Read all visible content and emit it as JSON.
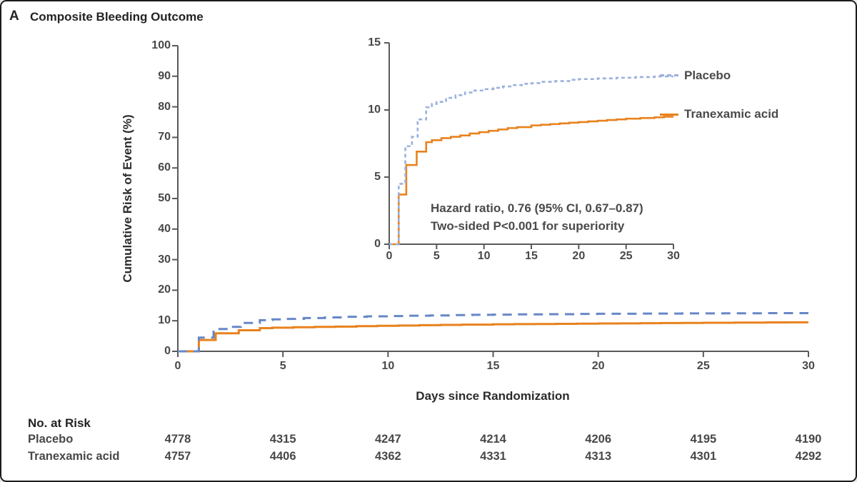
{
  "panel": {
    "label": "A",
    "title": "Composite Bleeding Outcome"
  },
  "chart_data": {
    "type": "line",
    "subtype": "kaplan-meier-step-cumulative-incidence",
    "title": "Composite Bleeding Outcome",
    "xlabel": "Days since Randomization",
    "ylabel": "Cumulative Risk of Event (%)",
    "grid": false,
    "main_axes": {
      "xlim": [
        0,
        30
      ],
      "ylim": [
        0,
        100
      ],
      "xticks": [
        0,
        5,
        10,
        15,
        20,
        25,
        30
      ],
      "yticks": [
        0,
        10,
        20,
        30,
        40,
        50,
        60,
        70,
        80,
        90,
        100
      ]
    },
    "inset_axes": {
      "xlim": [
        0,
        30
      ],
      "ylim": [
        0,
        15
      ],
      "xticks": [
        0,
        5,
        10,
        15,
        20,
        25,
        30
      ],
      "yticks": [
        0,
        5,
        10,
        15
      ]
    },
    "series": [
      {
        "name": "Tranexamic acid",
        "line_style": "solid",
        "color_key": "tranexamic",
        "final_value_pct": 9.5,
        "points": [
          [
            0,
            0
          ],
          [
            1,
            3.7
          ],
          [
            1.8,
            5.9
          ],
          [
            2.9,
            6.9
          ],
          [
            3.9,
            7.6
          ],
          [
            4.5,
            7.75
          ],
          [
            5.5,
            7.9
          ],
          [
            6.5,
            8.0
          ],
          [
            7.5,
            8.1
          ],
          [
            8.5,
            8.25
          ],
          [
            9.5,
            8.35
          ],
          [
            10.5,
            8.45
          ],
          [
            11.5,
            8.55
          ],
          [
            12.5,
            8.65
          ],
          [
            13.5,
            8.72
          ],
          [
            15,
            8.85
          ],
          [
            16,
            8.9
          ],
          [
            17,
            8.95
          ],
          [
            18,
            9.0
          ],
          [
            19,
            9.05
          ],
          [
            20,
            9.1
          ],
          [
            21,
            9.15
          ],
          [
            22,
            9.2
          ],
          [
            23,
            9.25
          ],
          [
            24,
            9.3
          ],
          [
            25,
            9.35
          ],
          [
            26.5,
            9.4
          ],
          [
            28,
            9.45
          ],
          [
            29,
            9.5
          ],
          [
            30,
            9.5
          ]
        ]
      },
      {
        "name": "Placebo",
        "line_style": "dashed",
        "color_key": "placebo",
        "final_value_pct": 12.5,
        "points": [
          [
            0,
            0
          ],
          [
            1,
            4.5
          ],
          [
            1.7,
            7.3
          ],
          [
            2.4,
            8.0
          ],
          [
            3,
            9.3
          ],
          [
            3.9,
            10.2
          ],
          [
            4.5,
            10.45
          ],
          [
            5,
            10.6
          ],
          [
            6,
            10.9
          ],
          [
            7,
            11.1
          ],
          [
            8,
            11.3
          ],
          [
            9,
            11.45
          ],
          [
            10,
            11.55
          ],
          [
            11,
            11.65
          ],
          [
            12,
            11.75
          ],
          [
            13,
            11.85
          ],
          [
            14,
            11.95
          ],
          [
            15,
            12.0
          ],
          [
            16,
            12.1
          ],
          [
            17.5,
            12.15
          ],
          [
            19,
            12.25
          ],
          [
            20,
            12.3
          ],
          [
            22,
            12.35
          ],
          [
            24,
            12.4
          ],
          [
            26,
            12.45
          ],
          [
            28,
            12.5
          ],
          [
            30,
            12.5
          ]
        ]
      }
    ],
    "annotations": [
      "Hazard ratio, 0.76 (95% CI, 0.67–0.87)",
      "Two-sided P<0.001 for superiority"
    ],
    "legend": {
      "position": "right-of-inset",
      "entries": [
        "Placebo",
        "Tranexamic acid"
      ]
    },
    "at_risk": {
      "title": "No. at Risk",
      "timepoints": [
        0,
        5,
        10,
        15,
        20,
        25,
        30
      ],
      "rows": [
        {
          "label": "Placebo",
          "values": [
            4778,
            4315,
            4247,
            4214,
            4206,
            4195,
            4190
          ]
        },
        {
          "label": "Tranexamic acid",
          "values": [
            4757,
            4406,
            4362,
            4331,
            4313,
            4301,
            4292
          ]
        }
      ]
    },
    "colors": {
      "placebo_main": "#6787c7",
      "placebo_inset": "#9ab1dd",
      "tranexamic": "#e8821e",
      "axis": "#58595b",
      "text": "#48484a"
    }
  }
}
